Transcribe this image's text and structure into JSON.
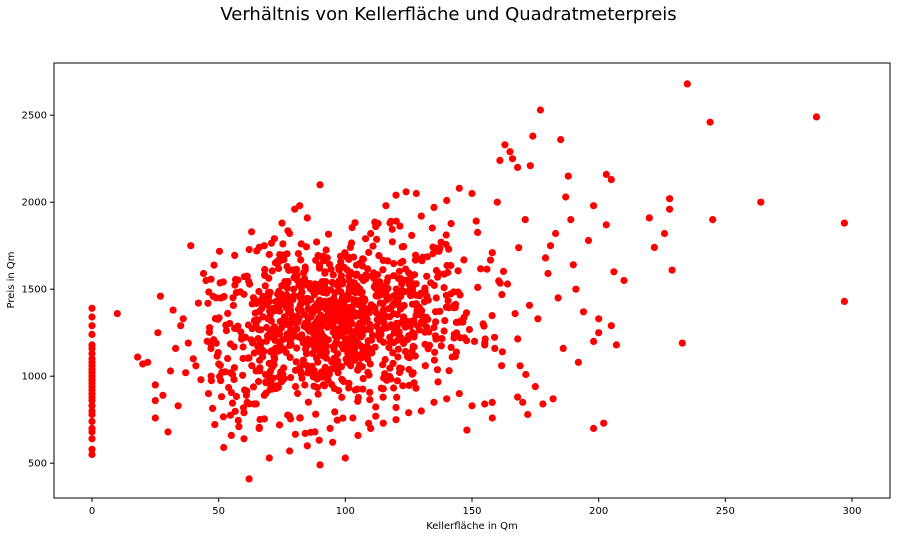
{
  "chart_data": {
    "type": "scatter",
    "title": "Verhältnis von Kellerfläche und Quadratmeterpreis",
    "xlabel": "Kellerfläche in Qm",
    "ylabel": "Preis in Qm",
    "xlim": [
      -15,
      315
    ],
    "ylim": [
      300,
      2800
    ],
    "xticks": [
      0,
      50,
      100,
      150,
      200,
      250,
      300
    ],
    "yticks": [
      500,
      1000,
      1500,
      2000,
      2500
    ],
    "grid": false,
    "marker_color": "#ff0000",
    "series": [
      {
        "points": [
          [
            0,
            550
          ],
          [
            0,
            580
          ],
          [
            0,
            640
          ],
          [
            0,
            680
          ],
          [
            0,
            700
          ],
          [
            0,
            740
          ],
          [
            0,
            780
          ],
          [
            0,
            800
          ],
          [
            0,
            830
          ],
          [
            0,
            860
          ],
          [
            0,
            880
          ],
          [
            0,
            900
          ],
          [
            0,
            920
          ],
          [
            0,
            940
          ],
          [
            0,
            960
          ],
          [
            0,
            980
          ],
          [
            0,
            1000
          ],
          [
            0,
            1020
          ],
          [
            0,
            1040
          ],
          [
            0,
            1060
          ],
          [
            0,
            1080
          ],
          [
            0,
            1100
          ],
          [
            0,
            1130
          ],
          [
            0,
            1160
          ],
          [
            0,
            1180
          ],
          [
            0,
            1240
          ],
          [
            0,
            1290
          ],
          [
            0,
            1340
          ],
          [
            0,
            1390
          ],
          [
            10,
            1360
          ],
          [
            18,
            1110
          ],
          [
            20,
            1070
          ],
          [
            22,
            1080
          ],
          [
            25,
            760
          ],
          [
            25,
            860
          ],
          [
            25,
            950
          ],
          [
            26,
            1250
          ],
          [
            27,
            1460
          ],
          [
            28,
            890
          ],
          [
            30,
            680
          ],
          [
            31,
            1030
          ],
          [
            32,
            1380
          ],
          [
            33,
            1160
          ],
          [
            34,
            830
          ],
          [
            35,
            1290
          ],
          [
            36,
            1330
          ],
          [
            37,
            1020
          ],
          [
            38,
            1190
          ],
          [
            39,
            1750
          ],
          [
            40,
            1100
          ],
          [
            41,
            1060
          ],
          [
            42,
            1420
          ],
          [
            43,
            980
          ],
          [
            44,
            1590
          ],
          [
            45,
            1550
          ],
          [
            46,
            900
          ],
          [
            47,
            1000
          ],
          [
            48,
            1210
          ],
          [
            49,
            1450
          ],
          [
            50,
            1070
          ],
          [
            235,
            2680
          ],
          [
            244,
            2460
          ],
          [
            286,
            2490
          ],
          [
            264,
            2000
          ],
          [
            228,
            2020
          ],
          [
            228,
            1960
          ],
          [
            245,
            1900
          ],
          [
            297,
            1880
          ],
          [
            297,
            1430
          ],
          [
            222,
            1740
          ],
          [
            226,
            1820
          ],
          [
            229,
            1610
          ],
          [
            233,
            1190
          ],
          [
            220,
            1910
          ],
          [
            207,
            1180
          ],
          [
            205,
            1290
          ],
          [
            202,
            730
          ],
          [
            198,
            700
          ],
          [
            200,
            1330
          ],
          [
            203,
            1870
          ],
          [
            205,
            2130
          ],
          [
            203,
            2160
          ],
          [
            206,
            1600
          ],
          [
            198,
            1980
          ],
          [
            196,
            1780
          ],
          [
            200,
            1250
          ],
          [
            198,
            1200
          ],
          [
            210,
            1550
          ],
          [
            185,
            2360
          ],
          [
            187,
            2030
          ],
          [
            177,
            2530
          ],
          [
            188,
            2150
          ],
          [
            174,
            2380
          ],
          [
            192,
            1080
          ],
          [
            190,
            1640
          ],
          [
            182,
            870
          ],
          [
            178,
            840
          ],
          [
            186,
            1160
          ],
          [
            184,
            1450
          ],
          [
            180,
            1590
          ],
          [
            176,
            1330
          ],
          [
            181,
            1750
          ],
          [
            183,
            1820
          ],
          [
            179,
            1680
          ],
          [
            189,
            1900
          ],
          [
            191,
            1500
          ],
          [
            194,
            1370
          ],
          [
            173,
            2210
          ],
          [
            171,
            1900
          ],
          [
            165,
            2290
          ],
          [
            166,
            2250
          ],
          [
            163,
            2330
          ],
          [
            161,
            2240
          ],
          [
            168,
            2200
          ],
          [
            160,
            2000
          ],
          [
            158,
            1710
          ],
          [
            164,
            1530
          ],
          [
            167,
            1360
          ],
          [
            162,
            1140
          ],
          [
            168,
            880
          ],
          [
            170,
            850
          ],
          [
            172,
            780
          ],
          [
            169,
            1060
          ],
          [
            175,
            940
          ],
          [
            150,
            2050
          ],
          [
            145,
            2080
          ],
          [
            140,
            2010
          ],
          [
            135,
            1970
          ],
          [
            130,
            1920
          ],
          [
            128,
            2050
          ],
          [
            120,
            2040
          ],
          [
            124,
            2060
          ],
          [
            118,
            1890
          ],
          [
            112,
            1860
          ],
          [
            108,
            1790
          ],
          [
            102,
            1740
          ],
          [
            110,
            1820
          ],
          [
            116,
            1980
          ],
          [
            90,
            2100
          ],
          [
            85,
            1910
          ],
          [
            82,
            1980
          ],
          [
            80,
            1960
          ],
          [
            75,
            1880
          ],
          [
            78,
            1820
          ],
          [
            72,
            1790
          ],
          [
            68,
            1750
          ],
          [
            65,
            1720
          ],
          [
            63,
            1830
          ],
          [
            66,
            1740
          ],
          [
            70,
            1700
          ],
          [
            74,
            1660
          ],
          [
            77,
            1630
          ],
          [
            81,
            1580
          ],
          [
            84,
            1550
          ],
          [
            88,
            1530
          ],
          [
            92,
            1500
          ],
          [
            96,
            1480
          ],
          [
            99,
            1460
          ],
          [
            103,
            1440
          ],
          [
            107,
            1420
          ],
          [
            111,
            1400
          ],
          [
            115,
            1380
          ],
          [
            119,
            1360
          ],
          [
            123,
            1340
          ],
          [
            127,
            1320
          ],
          [
            131,
            1300
          ],
          [
            135,
            1280
          ],
          [
            139,
            1260
          ],
          [
            143,
            1240
          ],
          [
            147,
            1220
          ],
          [
            151,
            1200
          ],
          [
            155,
            1180
          ],
          [
            159,
            1160
          ],
          [
            62,
            410
          ],
          [
            70,
            530
          ],
          [
            78,
            570
          ],
          [
            85,
            600
          ],
          [
            90,
            490
          ],
          [
            95,
            620
          ],
          [
            100,
            530
          ],
          [
            105,
            660
          ],
          [
            110,
            700
          ],
          [
            115,
            730
          ],
          [
            120,
            750
          ],
          [
            125,
            790
          ],
          [
            130,
            800
          ],
          [
            135,
            850
          ],
          [
            140,
            870
          ],
          [
            145,
            900
          ],
          [
            150,
            830
          ],
          [
            155,
            840
          ],
          [
            158,
            760
          ],
          [
            148,
            690
          ],
          [
            60,
            640
          ],
          [
            66,
            700
          ],
          [
            74,
            720
          ],
          [
            82,
            760
          ],
          [
            88,
            680
          ],
          [
            94,
            700
          ],
          [
            103,
            760
          ],
          [
            112,
            770
          ],
          [
            120,
            820
          ],
          [
            52,
            590
          ],
          [
            55,
            660
          ],
          [
            58,
            710
          ],
          [
            60,
            790
          ],
          [
            64,
            840
          ],
          [
            68,
            890
          ]
        ],
        "cluster_note": ""
      }
    ],
    "cluster": {
      "center_x": 95,
      "center_y": 1300,
      "count": 1100
    }
  }
}
